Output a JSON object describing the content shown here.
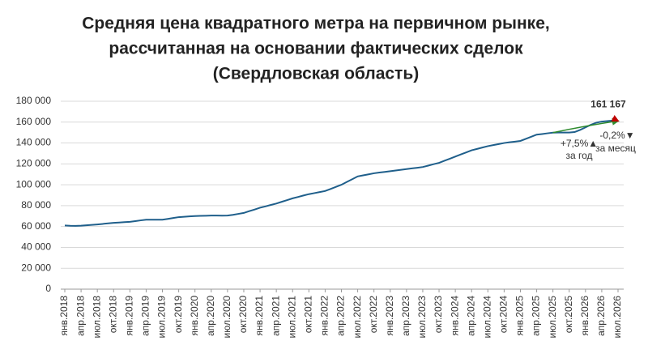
{
  "chart_data": {
    "type": "line",
    "title": [
      "Средняя цена квадратного метра на первичном рынке,",
      "рассчитанная на основании фактических сделок",
      "(Свердловская область)"
    ],
    "categories": [
      "янв.2018",
      null,
      null,
      "апр.2018",
      null,
      null,
      "июл.2018",
      null,
      null,
      "окт.2018",
      null,
      null,
      "янв.2019",
      null,
      null,
      "апр.2019",
      null,
      null,
      "июл.2019",
      null,
      null,
      "окт.2019",
      null,
      null,
      "янв.2020",
      null,
      null,
      "апр.2020",
      null,
      null,
      "июл.2020",
      null,
      null,
      "окт.2020",
      null,
      null,
      "янв.2021",
      null,
      null,
      "апр.2021",
      null,
      null,
      "июл.2021",
      null,
      null,
      "окт.2021",
      null,
      null,
      "янв.2022",
      null,
      null,
      "апр.2022",
      null,
      null,
      "июл.2022",
      null,
      null,
      "окт.2022",
      null,
      null,
      "янв.2023",
      null,
      null,
      "апр.2023",
      null,
      null,
      "июл.2023",
      null,
      null,
      "окт.2023",
      null,
      null,
      "янв.2024",
      null,
      null,
      "апр.2024",
      null,
      null,
      "июл.2024",
      null,
      null,
      "окт.2024",
      null,
      null,
      "янв.2025",
      null,
      null,
      "апр.2025",
      null,
      null,
      "июл.2025",
      null,
      null,
      "окт.2025",
      null,
      null,
      "янв.2026",
      null,
      null,
      "апр.2026",
      null,
      null,
      "июл.2026"
    ],
    "values": [
      61000,
      60700,
      60600,
      60800,
      61200,
      61600,
      62000,
      62500,
      63000,
      63500,
      63800,
      64200,
      64500,
      65200,
      65900,
      66500,
      66500,
      66500,
      66500,
      67300,
      68200,
      69000,
      69300,
      69700,
      70000,
      70200,
      70300,
      70500,
      70500,
      70400,
      70500,
      71200,
      72100,
      73000,
      74700,
      76300,
      78000,
      79300,
      80700,
      82000,
      83700,
      85300,
      87000,
      88300,
      89700,
      91000,
      92000,
      93000,
      94000,
      96000,
      98000,
      100000,
      102700,
      105300,
      108000,
      109000,
      110000,
      111000,
      111700,
      112300,
      113000,
      113700,
      114300,
      115000,
      115700,
      116300,
      117000,
      118300,
      119700,
      121000,
      123000,
      125000,
      127000,
      129000,
      131000,
      133000,
      134300,
      135700,
      137000,
      138000,
      139000,
      140000,
      140700,
      141300,
      142000,
      144000,
      146000,
      148000,
      148600,
      149300,
      149900,
      150000,
      150000,
      150000,
      150500,
      152500,
      155000,
      157500,
      159500,
      160500,
      161000,
      161500,
      161167
    ],
    "value_labels": [
      null,
      null,
      null,
      null,
      null,
      null,
      null,
      null,
      null,
      null,
      null,
      null,
      null,
      null,
      null,
      null,
      null,
      null,
      null,
      null,
      null,
      null,
      null,
      null,
      null,
      null,
      null,
      null,
      null,
      null,
      null,
      null,
      null,
      null,
      null,
      null,
      null,
      null,
      null,
      null,
      null,
      null,
      null,
      null,
      null,
      null,
      null,
      null,
      null,
      null,
      null,
      null,
      null,
      null,
      null,
      null,
      null,
      null,
      null,
      null,
      null,
      null,
      null,
      null,
      null,
      null,
      null,
      null,
      null,
      null,
      null,
      null,
      null,
      null,
      null,
      null,
      null,
      null,
      null,
      null,
      null,
      null,
      null,
      null,
      null,
      null,
      null,
      null,
      null,
      null,
      null,
      null,
      null,
      null,
      null,
      null,
      null,
      null,
      null,
      null,
      null,
      null,
      "161 167"
    ],
    "color": "#1f5f8b",
    "ylim": [
      0,
      180000
    ],
    "yticks": [
      0,
      {
        "value": 20000,
        "label": "20 000"
      },
      {
        "value": 40000,
        "label": "40 000"
      },
      {
        "value": 60000,
        "label": "60 000"
      },
      {
        "value": 80000,
        "label": "80 000"
      },
      {
        "value": 100000,
        "label": "100 000"
      },
      {
        "value": 120000,
        "label": "120 000"
      },
      {
        "value": 140000,
        "label": "140 000"
      },
      {
        "value": 160000,
        "label": "160 000"
      },
      {
        "value": 180000,
        "label": "180 000"
      }
    ],
    "grid": true,
    "annotations": [
      {
        "text": "+7,5%▲",
        "color": "#2e8b2e"
      },
      {
        "text": "за год",
        "color": "#2e8b2e"
      },
      {
        "text": "-0,2%▼",
        "color": "#c00000"
      },
      {
        "text": "за месяц",
        "color": "#c00000"
      }
    ]
  }
}
